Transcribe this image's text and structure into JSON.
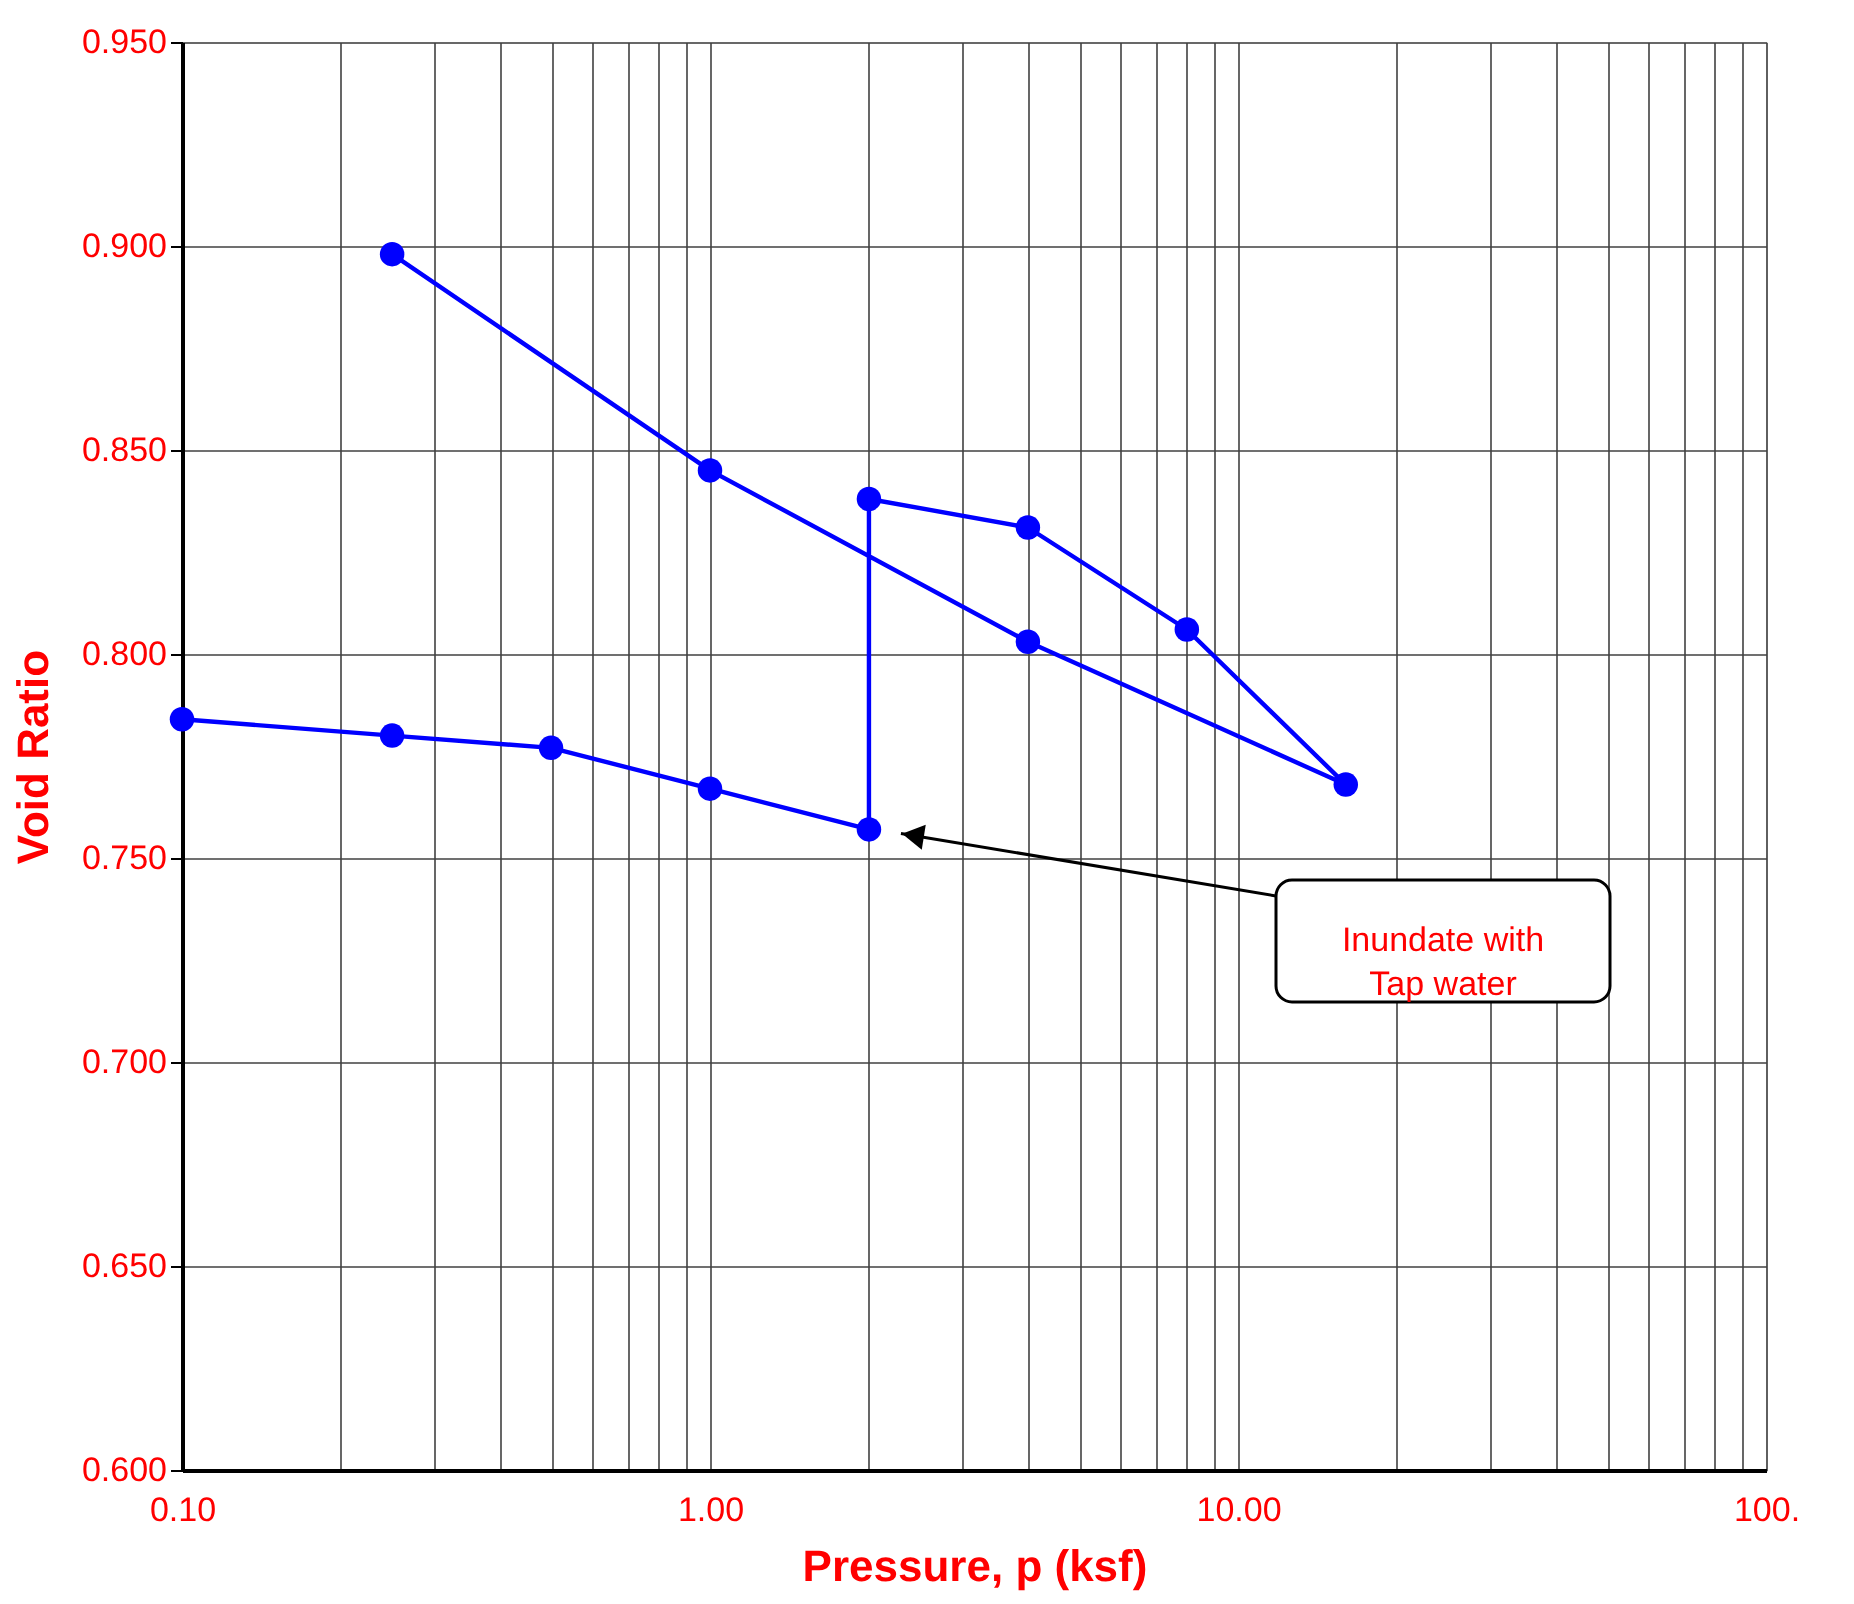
{
  "chart_data": {
    "type": "line",
    "xlabel": "Pressure, p (ksf)",
    "ylabel": "Void Ratio",
    "x": [
      0.1,
      0.25,
      0.5,
      1,
      2,
      2,
      4,
      8,
      16,
      4,
      1,
      0.25
    ],
    "series": [
      {
        "color": "#0000ff",
        "values": [
          0.784,
          0.78,
          0.777,
          0.767,
          0.757,
          0.838,
          0.831,
          0.806,
          0.768,
          0.803,
          0.845,
          0.898
        ]
      }
    ],
    "marker": "circle",
    "log": "x",
    "grid": true,
    "xlim": [
      0.1,
      100
    ],
    "xticks": [
      {
        "value": 0.1,
        "label": "0.10"
      },
      {
        "value": 0.2,
        "label": null
      },
      {
        "value": 0.3,
        "label": null
      },
      {
        "value": 0.4,
        "label": null
      },
      {
        "value": 0.5,
        "label": null
      },
      {
        "value": 0.6,
        "label": null
      },
      {
        "value": 0.7,
        "label": null
      },
      {
        "value": 0.8,
        "label": null
      },
      {
        "value": 0.9,
        "label": null
      },
      {
        "value": 1,
        "label": "1.00"
      },
      {
        "value": 2,
        "label": null
      },
      {
        "value": 3,
        "label": null
      },
      {
        "value": 4,
        "label": null
      },
      {
        "value": 5,
        "label": null
      },
      {
        "value": 6,
        "label": null
      },
      {
        "value": 7,
        "label": null
      },
      {
        "value": 8,
        "label": null
      },
      {
        "value": 9,
        "label": null
      },
      {
        "value": 10,
        "label": "10.00"
      },
      {
        "value": 20,
        "label": null
      },
      {
        "value": 30,
        "label": null
      },
      {
        "value": 40,
        "label": null
      },
      {
        "value": 50,
        "label": null
      },
      {
        "value": 60,
        "label": null
      },
      {
        "value": 70,
        "label": null
      },
      {
        "value": 80,
        "label": null
      },
      {
        "value": 90,
        "label": null
      },
      {
        "value": 100,
        "label": "100."
      }
    ],
    "ylim": [
      0.6,
      0.95
    ],
    "yticks": [
      {
        "value": 0.6,
        "label": "0.600"
      },
      {
        "value": 0.65,
        "label": "0.650"
      },
      {
        "value": 0.7,
        "label": "0.700"
      },
      {
        "value": 0.75,
        "label": "0.750"
      },
      {
        "value": 0.8,
        "label": "0.800"
      },
      {
        "value": 0.85,
        "label": "0.850"
      },
      {
        "value": 0.9,
        "label": "0.900"
      },
      {
        "value": 0.95,
        "label": "0.950"
      }
    ],
    "annotations": [
      "Inundate with\nTap water"
    ]
  }
}
